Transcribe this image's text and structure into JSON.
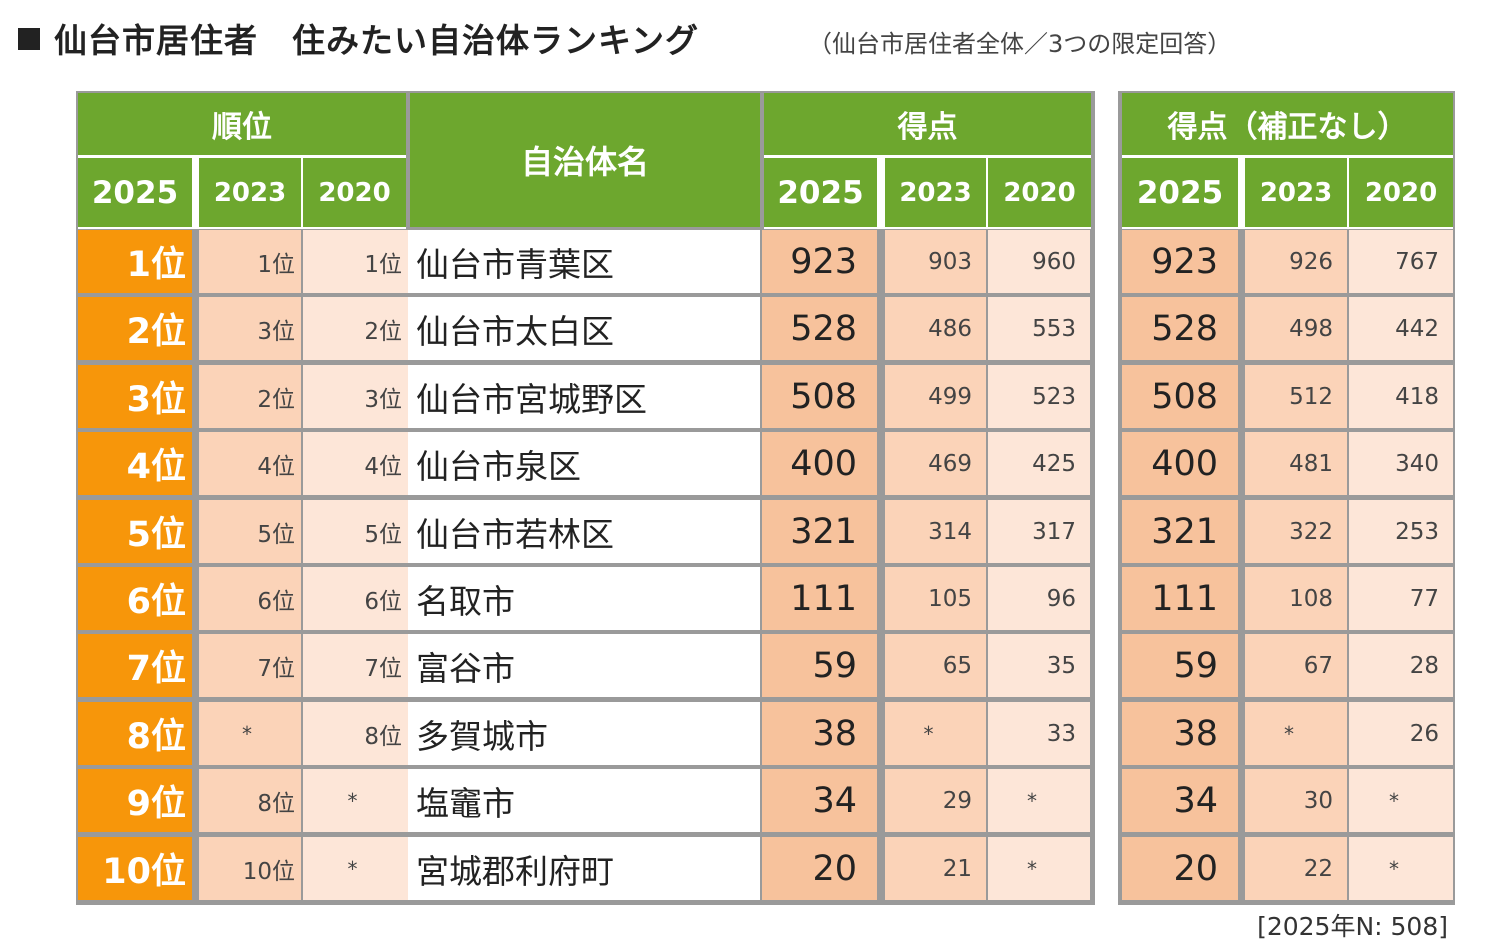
{
  "title": "仙台市居住者　住みたい自治体ランキング",
  "subtitle": "（仙台市居住者全体／3つの限定回答）",
  "note": "[2025年N:  508]",
  "headers": {
    "rank": "順位",
    "name": "自治体名",
    "score": "得点",
    "score_raw": "得点（補正なし）",
    "years": [
      "2025",
      "2023",
      "2020"
    ]
  },
  "colors": {
    "header": "#6da72e",
    "rank_highlight": "#f7960a",
    "score_highlight": "#f7c29c",
    "mid": "#fbd3b8",
    "light": "#fde6d8"
  },
  "chart_data": {
    "type": "table",
    "title": "仙台市居住者　住みたい自治体ランキング",
    "columns": [
      "順位 2025",
      "順位 2023",
      "順位 2020",
      "自治体名",
      "得点 2025",
      "得点 2023",
      "得点 2020",
      "得点（補正なし） 2025",
      "得点（補正なし） 2023",
      "得点（補正なし） 2020"
    ],
    "rows": [
      [
        "1位",
        "1位",
        "1位",
        "仙台市青葉区",
        "923",
        "903",
        "960",
        "923",
        "926",
        "767"
      ],
      [
        "2位",
        "3位",
        "2位",
        "仙台市太白区",
        "528",
        "486",
        "553",
        "528",
        "498",
        "442"
      ],
      [
        "3位",
        "2位",
        "3位",
        "仙台市宮城野区",
        "508",
        "499",
        "523",
        "508",
        "512",
        "418"
      ],
      [
        "4位",
        "4位",
        "4位",
        "仙台市泉区",
        "400",
        "469",
        "425",
        "400",
        "481",
        "340"
      ],
      [
        "5位",
        "5位",
        "5位",
        "仙台市若林区",
        "321",
        "314",
        "317",
        "321",
        "322",
        "253"
      ],
      [
        "6位",
        "6位",
        "6位",
        "名取市",
        "111",
        "105",
        "96",
        "111",
        "108",
        "77"
      ],
      [
        "7位",
        "7位",
        "7位",
        "富谷市",
        "59",
        "65",
        "35",
        "59",
        "67",
        "28"
      ],
      [
        "8位",
        "*",
        "8位",
        "多賀城市",
        "38",
        "*",
        "33",
        "38",
        "*",
        "26"
      ],
      [
        "9位",
        "8位",
        "*",
        "塩竈市",
        "34",
        "29",
        "*",
        "34",
        "30",
        "*"
      ],
      [
        "10位",
        "10位",
        "*",
        "宮城郡利府町",
        "20",
        "21",
        "*",
        "20",
        "22",
        "*"
      ]
    ]
  }
}
